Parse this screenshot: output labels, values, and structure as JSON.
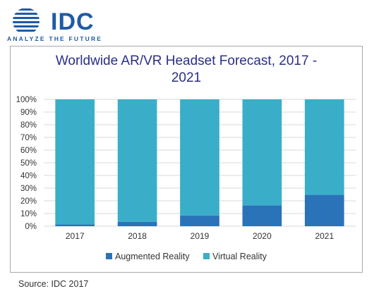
{
  "brand": {
    "name": "IDC",
    "tagline": "ANALYZE THE FUTURE",
    "color": "#1f5aa6"
  },
  "source": "Source: IDC 2017",
  "chart_data": {
    "type": "bar",
    "stacked": true,
    "percent": true,
    "title_line1": "Worldwide AR/VR Headset Forecast, 2017 -",
    "title_line2": "2021",
    "categories": [
      "2017",
      "2018",
      "2019",
      "2020",
      "2021"
    ],
    "series": [
      {
        "name": "Augmented Reality",
        "color": "#2a73b8",
        "values": [
          1.5,
          3.5,
          8.5,
          16.5,
          24.8
        ]
      },
      {
        "name": "Virtual Reality",
        "color": "#3aaec9",
        "values": [
          98.5,
          96.5,
          91.5,
          83.5,
          75.2
        ]
      }
    ],
    "y_ticks": [
      "0%",
      "10%",
      "20%",
      "30%",
      "40%",
      "50%",
      "60%",
      "70%",
      "80%",
      "90%",
      "100%"
    ],
    "ylim": [
      0,
      100
    ],
    "grid": true,
    "gridline_color": "#d9d9d9",
    "legend_position": "bottom"
  }
}
